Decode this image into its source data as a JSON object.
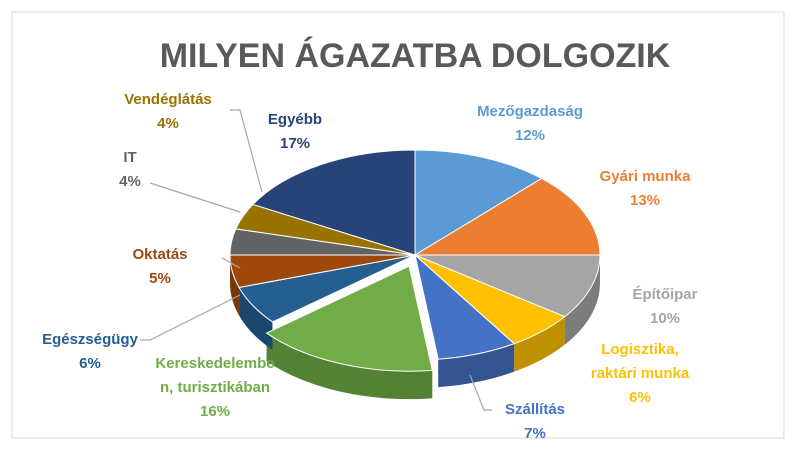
{
  "chart_data": {
    "type": "pie",
    "title": "MILYEN ÁGAZATBA DOLGOZIK",
    "categories": [
      "Mezőgazdaság",
      "Gyári munka",
      "Építőipar",
      "Logisztika, raktári munka",
      "Szállítás",
      "Kereskedelemben, turisztikában",
      "Egészségügy",
      "Oktatás",
      "IT",
      "Vendéglátás",
      "Egyébb"
    ],
    "values": [
      12,
      13,
      10,
      6,
      7,
      16,
      6,
      5,
      4,
      4,
      17
    ],
    "value_labels": [
      "12%",
      "13%",
      "10%",
      "6%",
      "7%",
      "16%",
      "6%",
      "5%",
      "4%",
      "4%",
      "17%"
    ],
    "colors": [
      "#5b9bd5",
      "#ed7d31",
      "#a5a5a5",
      "#ffc000",
      "#4472c4",
      "#70ad47",
      "#255e91",
      "#9e480e",
      "#636363",
      "#997300",
      "#264478"
    ],
    "exploded": [
      5
    ]
  }
}
